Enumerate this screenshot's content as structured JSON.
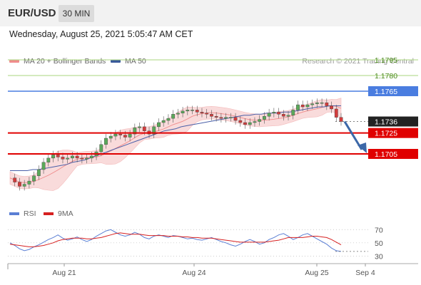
{
  "header": {
    "pair": "EUR/USD",
    "timeframe": "30 MIN",
    "datetime": "Wednesday, August 25, 2021 5:05:47 AM CET",
    "credit": "Research © 2021 Trading Central"
  },
  "legend": {
    "bollinger": "MA 20 + Bollinger Bands",
    "ma50": "MA 50",
    "rsi": "RSI",
    "rsi_ma": "9MA"
  },
  "colors": {
    "resistance": "#4a7de0",
    "support": "#e00000",
    "target": "#7cba3f",
    "up_candle": "#5aa95a",
    "down_candle": "#d33b3b",
    "bollinger_fill": "#f9d5d5",
    "ma50": "#4a5fa8",
    "rsi": "#5b7fd4",
    "rsi_ma": "#d62020",
    "arrow": "#3c68a8"
  },
  "chart_data": [
    {
      "type": "candlestick",
      "title": "EUR/USD",
      "ylim": [
        1.166,
        1.181
      ],
      "x_labels": [
        "Aug 21",
        "Aug 24",
        "Aug 25",
        "Sep 4"
      ],
      "levels": [
        {
          "value": 1.1795,
          "label": "1.1795",
          "kind": "target"
        },
        {
          "value": 1.178,
          "label": "1.1780",
          "kind": "target"
        },
        {
          "value": 1.1765,
          "label": "1.1765",
          "kind": "resistance"
        },
        {
          "value": 1.1736,
          "label": "1.1736",
          "kind": "last"
        },
        {
          "value": 1.1725,
          "label": "1.1725",
          "kind": "support"
        },
        {
          "value": 1.1705,
          "label": "1.1705",
          "kind": "support"
        }
      ],
      "close_series": [
        1.1682,
        1.1678,
        1.1674,
        1.1676,
        1.1679,
        1.1684,
        1.169,
        1.1697,
        1.1701,
        1.1704,
        1.1702,
        1.17,
        1.1701,
        1.1703,
        1.1701,
        1.17,
        1.1701,
        1.1703,
        1.1707,
        1.1714,
        1.172,
        1.1722,
        1.1724,
        1.1723,
        1.1721,
        1.1724,
        1.173,
        1.1731,
        1.1727,
        1.1724,
        1.1731,
        1.1735,
        1.1737,
        1.1739,
        1.1743,
        1.1744,
        1.1746,
        1.1747,
        1.1747,
        1.1745,
        1.1744,
        1.1743,
        1.1741,
        1.174,
        1.1739,
        1.174,
        1.174,
        1.1737,
        1.1735,
        1.1733,
        1.1735,
        1.1736,
        1.1738,
        1.1741,
        1.1744,
        1.1745,
        1.1743,
        1.1741,
        1.1742,
        1.1747,
        1.1752,
        1.175,
        1.1752,
        1.1753,
        1.1754,
        1.1754,
        1.1751,
        1.1748,
        1.174,
        1.1736
      ],
      "ma50": [
        1.1689,
        1.1689,
        1.1689,
        1.1689,
        1.169,
        1.169,
        1.1691,
        1.1692,
        1.1693,
        1.1694,
        1.1695,
        1.1697,
        1.1698,
        1.1699,
        1.1701,
        1.1703,
        1.1705,
        1.1707,
        1.1709,
        1.1711,
        1.1713,
        1.1715,
        1.1717,
        1.1719,
        1.1721,
        1.1723,
        1.1725,
        1.1727,
        1.1728,
        1.1729,
        1.1731,
        1.1732,
        1.1733,
        1.1734,
        1.1735,
        1.1736,
        1.1737,
        1.1738,
        1.1739,
        1.174,
        1.1741,
        1.1742,
        1.1742,
        1.1743,
        1.1743,
        1.1744,
        1.1744,
        1.1744,
        1.1745,
        1.1745,
        1.1746,
        1.1747,
        1.1748,
        1.1749,
        1.175,
        1.175,
        1.1751,
        1.1751,
        1.1751
      ],
      "forecast_arrow": {
        "from": 1.1736,
        "to": 1.1705
      }
    },
    {
      "type": "line",
      "title": "RSI",
      "ylim": [
        25,
        80
      ],
      "yticks": [
        70,
        50,
        30
      ],
      "series": [
        {
          "name": "RSI",
          "values": [
            50,
            46,
            41,
            38,
            40,
            44,
            47,
            51,
            55,
            58,
            62,
            57,
            54,
            56,
            59,
            55,
            52,
            55,
            60,
            64,
            68,
            70,
            66,
            62,
            60,
            62,
            66,
            63,
            58,
            56,
            60,
            62,
            60,
            58,
            61,
            60,
            58,
            56,
            57,
            55,
            54,
            56,
            58,
            55,
            52,
            50,
            47,
            45,
            48,
            52,
            55,
            52,
            48,
            50,
            55,
            58,
            62,
            64,
            60,
            55,
            58,
            62,
            64,
            60,
            56,
            52,
            48,
            42,
            38,
            37
          ]
        },
        {
          "name": "9MA",
          "values": [
            48,
            47,
            46,
            45,
            44,
            44,
            45,
            46,
            48,
            50,
            53,
            55,
            56,
            57,
            57,
            57,
            56,
            56,
            57,
            58,
            60,
            62,
            64,
            65,
            64,
            63,
            63,
            63,
            62,
            61,
            61,
            61,
            61,
            60,
            60,
            60,
            59,
            59,
            58,
            58,
            57,
            57,
            57,
            56,
            55,
            54,
            53,
            52,
            51,
            51,
            51,
            51,
            51,
            51,
            52,
            53,
            54,
            56,
            58,
            58,
            58,
            58,
            59,
            60,
            60,
            59,
            58,
            55,
            51,
            47
          ]
        }
      ]
    }
  ]
}
